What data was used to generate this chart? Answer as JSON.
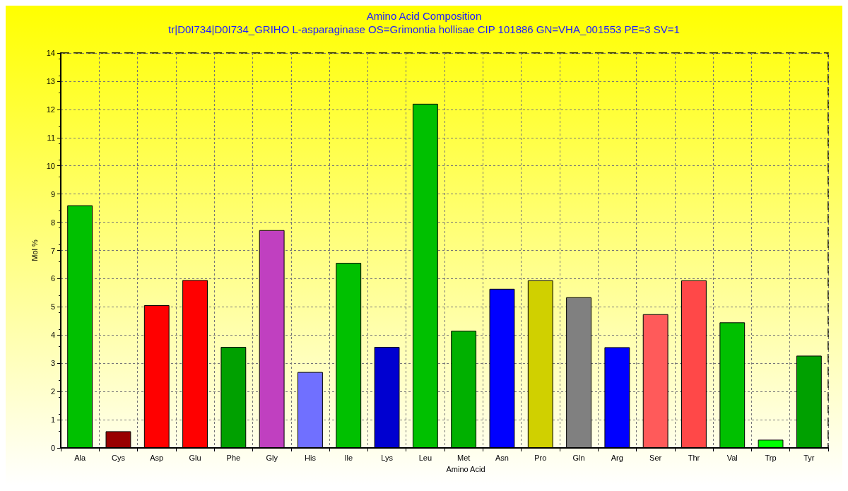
{
  "chart_data": {
    "type": "bar",
    "title": "Amino Acid Composition",
    "subtitle": "tr|D0I734|D0I734_GRIHO L-asparaginase OS=Grimontia hollisae CIP 101886 GN=VHA_001553 PE=3 SV=1",
    "xlabel": "Amino Acid",
    "ylabel": "Mol %",
    "categories": [
      "Ala",
      "Cys",
      "Asp",
      "Glu",
      "Phe",
      "Gly",
      "His",
      "Ile",
      "Lys",
      "Leu",
      "Met",
      "Asn",
      "Pro",
      "Gln",
      "Arg",
      "Ser",
      "Thr",
      "Val",
      "Trp",
      "Tyr"
    ],
    "values": [
      8.6,
      0.59,
      5.06,
      5.95,
      3.58,
      7.72,
      2.69,
      6.56,
      3.58,
      12.2,
      4.15,
      5.64,
      5.94,
      5.34,
      3.57,
      4.74,
      5.94,
      4.45,
      0.29,
      3.27
    ],
    "colors": [
      "#00c000",
      "#990000",
      "#ff0000",
      "#ff0000",
      "#00a000",
      "#c040c0",
      "#7070ff",
      "#00c000",
      "#0000d0",
      "#00c000",
      "#00b000",
      "#0000ff",
      "#d0d000",
      "#808080",
      "#0000ff",
      "#ff5a5a",
      "#ff4848",
      "#00c000",
      "#00ff00",
      "#00a000"
    ],
    "ylim": [
      0,
      14
    ],
    "yticks": [
      0,
      1,
      2,
      3,
      4,
      5,
      6,
      7,
      8,
      9,
      10,
      11,
      12,
      13,
      14
    ],
    "grid": true
  }
}
